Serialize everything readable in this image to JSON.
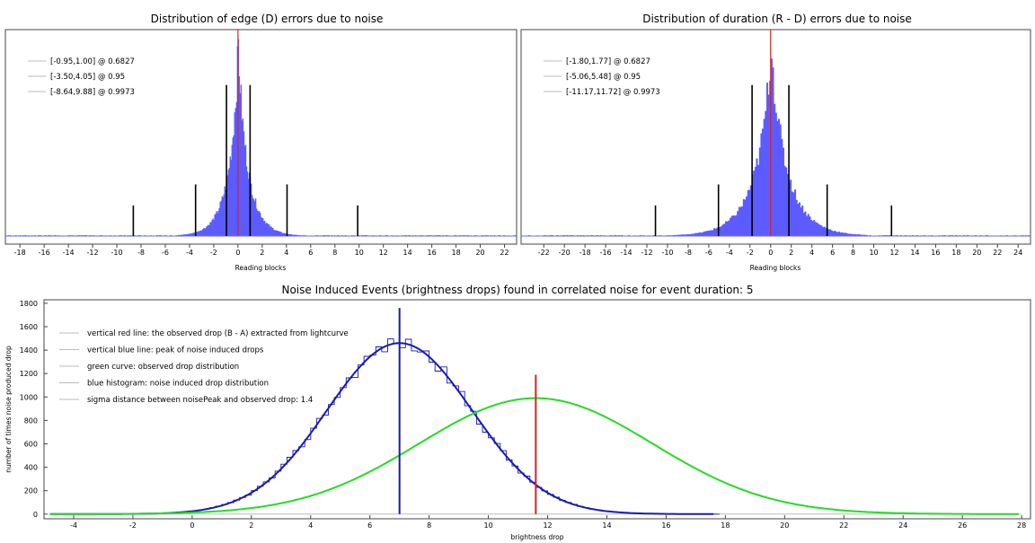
{
  "chart_data": [
    {
      "type": "histogram",
      "title": "Distribution of edge (D) errors due to noise",
      "xlabel": "Reading blocks",
      "xlim": [
        -19.2,
        23.0
      ],
      "xticks": [
        -18,
        -16,
        -14,
        -12,
        -10,
        -8,
        -6,
        -4,
        -2,
        0,
        2,
        4,
        6,
        8,
        10,
        12,
        14,
        16,
        18,
        20,
        22
      ],
      "histogram": {
        "color": "#4a4aff",
        "center": 0,
        "peak": 1.0,
        "shape": "laplace",
        "scale": 1.0
      },
      "zero_line": {
        "x": 0,
        "color": "#e02020"
      },
      "intervals": [
        {
          "label": "[-0.95,1.00] @ 0.6827",
          "lo": -0.95,
          "hi": 1.0,
          "height": 0.79
        },
        {
          "label": "[-3.50,4.05] @ 0.95",
          "lo": -3.5,
          "hi": 4.05,
          "height": 0.27
        },
        {
          "label": "[-8.64,9.88] @ 0.9973",
          "lo": -8.64,
          "hi": 9.88,
          "height": 0.16
        }
      ]
    },
    {
      "type": "histogram",
      "title": "Distribution of duration (R - D) errors due to noise",
      "xlabel": "Reading blocks",
      "xlim": [
        -24.2,
        25.2
      ],
      "xticks": [
        -22,
        -20,
        -18,
        -16,
        -14,
        -12,
        -10,
        -8,
        -6,
        -4,
        -2,
        0,
        2,
        4,
        6,
        8,
        10,
        12,
        14,
        16,
        18,
        20,
        22,
        24
      ],
      "histogram": {
        "color": "#4a4aff",
        "center": 0,
        "peak": 1.0,
        "shape": "laplace",
        "scale": 1.9
      },
      "zero_line": {
        "x": 0,
        "color": "#e02020"
      },
      "intervals": [
        {
          "label": "[-1.80,1.77] @ 0.6827",
          "lo": -1.8,
          "hi": 1.77,
          "height": 0.79
        },
        {
          "label": "[-5.06,5.48] @ 0.95",
          "lo": -5.06,
          "hi": 5.48,
          "height": 0.27
        },
        {
          "label": "[-11.17,11.72] @ 0.9973",
          "lo": -11.17,
          "hi": 11.72,
          "height": 0.16
        }
      ]
    },
    {
      "type": "line",
      "title": "Noise Induced Events (brightness drops) found in correlated noise for event duration: 5",
      "xlabel": "brightness drop",
      "ylabel": "number of times noise produced drop",
      "xlim": [
        -5.0,
        28.3
      ],
      "ylim": [
        -40,
        1830
      ],
      "xticks": [
        -4,
        -2,
        0,
        2,
        4,
        6,
        8,
        10,
        12,
        14,
        16,
        18,
        20,
        22,
        24,
        26,
        28
      ],
      "yticks": [
        0,
        200,
        400,
        600,
        800,
        1000,
        1200,
        1400,
        1600,
        1800
      ],
      "legend": [
        "vertical red line: the observed drop (B - A) extracted from lightcurve",
        "vertical blue line: peak of noise induced drops",
        "green curve: observed drop distribution",
        "blue histogram: noise induced drop distribution",
        "sigma distance between noisePeak and observed drop: 1.4"
      ],
      "series": [
        {
          "kind": "gaussian",
          "color": "#1a1ab5",
          "mu": 7.0,
          "sigma": 2.45,
          "amplitude": 1460,
          "xrange": [
            -4.8,
            17.6
          ]
        },
        {
          "kind": "gaussian",
          "color": "#22dd22",
          "mu": 11.6,
          "sigma": 3.95,
          "amplitude": 990,
          "xrange": [
            -4.8,
            28
          ]
        }
      ],
      "blue_line": {
        "x": 7.0,
        "top": 1760,
        "color": "#1a1ab5"
      },
      "red_line": {
        "x": 11.6,
        "top": 1190,
        "color": "#e02020"
      }
    }
  ]
}
